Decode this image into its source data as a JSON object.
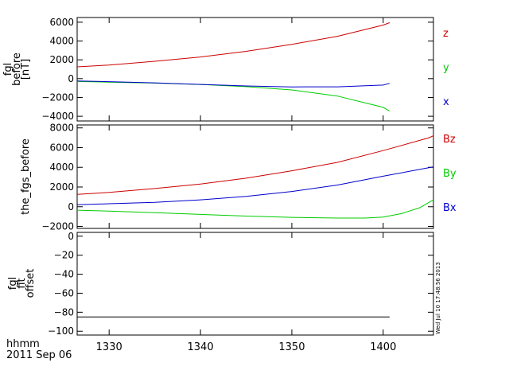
{
  "chart_data": [
    {
      "type": "line",
      "ylabel_lines": [
        "fgl",
        "before",
        "[nT]"
      ],
      "ylim": [
        -4500,
        6500
      ],
      "yticks": [
        6000,
        4000,
        2000,
        0,
        -2000,
        -4000
      ],
      "ytick_labels": [
        "6000",
        "4000",
        "2000",
        "0",
        "−2000",
        "−4000"
      ],
      "series": [
        {
          "name": "z",
          "color": "#cc0000",
          "x": [
            1326.5,
            1330,
            1335,
            1340,
            1345,
            1350,
            1355,
            1400,
            1400.7
          ],
          "y": [
            1250,
            1450,
            1850,
            2300,
            2900,
            3650,
            4500,
            5700,
            5950
          ]
        },
        {
          "name": "y",
          "color": "#00cc00",
          "x": [
            1326.5,
            1330,
            1335,
            1340,
            1345,
            1350,
            1355,
            1400,
            1400.7
          ],
          "y": [
            -300,
            -370,
            -470,
            -620,
            -850,
            -1200,
            -1850,
            -3050,
            -3450
          ]
        },
        {
          "name": "x",
          "color": "#0000cc",
          "x": [
            1326.5,
            1330,
            1335,
            1340,
            1345,
            1350,
            1355,
            1400,
            1400.7
          ],
          "y": [
            -250,
            -320,
            -450,
            -620,
            -780,
            -880,
            -870,
            -680,
            -500
          ]
        }
      ]
    },
    {
      "type": "line",
      "ylabel_lines": [
        "the_fgs_before"
      ],
      "ylim": [
        -2200,
        8300
      ],
      "yticks": [
        8000,
        6000,
        4000,
        2000,
        0,
        -2000
      ],
      "ytick_labels": [
        "8000",
        "6000",
        "4000",
        "2000",
        "0",
        "−2000"
      ],
      "series": [
        {
          "name": "Bz",
          "color": "#cc0000",
          "x": [
            1326.5,
            1330,
            1335,
            1340,
            1345,
            1350,
            1355,
            1400,
            1405,
            1405.5
          ],
          "y": [
            1250,
            1450,
            1850,
            2300,
            2900,
            3650,
            4500,
            5700,
            7000,
            7200
          ]
        },
        {
          "name": "By",
          "color": "#00cc00",
          "x": [
            1326.5,
            1330,
            1335,
            1340,
            1345,
            1350,
            1355,
            1358,
            1400,
            1402,
            1404,
            1405.5
          ],
          "y": [
            -350,
            -450,
            -600,
            -780,
            -950,
            -1080,
            -1150,
            -1150,
            -1050,
            -700,
            -100,
            700
          ]
        },
        {
          "name": "Bx",
          "color": "#0000cc",
          "x": [
            1326.5,
            1330,
            1335,
            1340,
            1345,
            1350,
            1355,
            1400,
            1405.5
          ],
          "y": [
            200,
            300,
            450,
            700,
            1050,
            1550,
            2200,
            3100,
            4050
          ]
        }
      ]
    },
    {
      "type": "line",
      "ylabel_lines": [
        "fgl",
        "fit",
        "offset"
      ],
      "ylim": [
        -104,
        4
      ],
      "yticks": [
        0,
        -20,
        -40,
        -60,
        -80,
        -100
      ],
      "ytick_labels": [
        "0",
        "−20",
        "−40",
        "−60",
        "−80",
        "−100"
      ],
      "series": [
        {
          "name": "",
          "color": "#000000",
          "x": [
            1326.5,
            1400.7
          ],
          "y": [
            -85,
            -85
          ]
        }
      ]
    }
  ],
  "x_axis": {
    "range": [
      1326.5,
      1405.5
    ],
    "ticks": [
      1330,
      1340,
      1350,
      1400
    ],
    "tick_labels": [
      "1330",
      "1340",
      "1350",
      "1400"
    ]
  },
  "x_caption_line1": "hhmm",
  "x_caption_line2": "2011 Sep 06",
  "timestamp": "Wed Jul 10 17:48:56 2013"
}
